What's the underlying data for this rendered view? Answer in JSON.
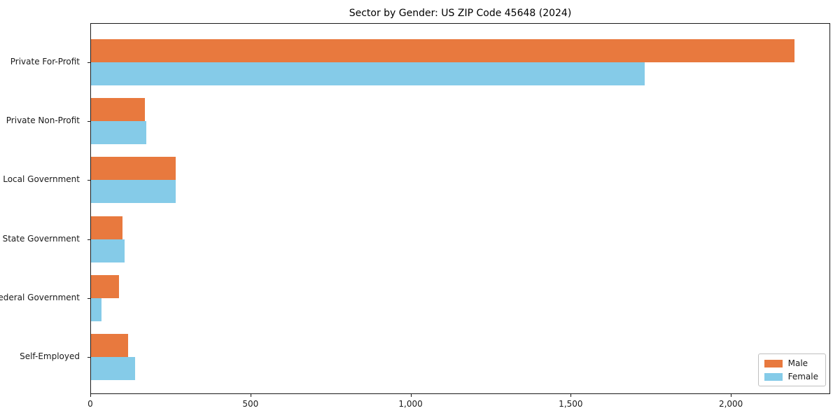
{
  "chart_data": {
    "type": "bar",
    "orientation": "horizontal",
    "title": "Sector by Gender: US ZIP Code 45648 (2024)",
    "categories": [
      "Private For-Profit",
      "Private Non-Profit",
      "Local Government",
      "State Government",
      "Federal Government",
      "Self-Employed"
    ],
    "series": [
      {
        "name": "Male",
        "color": "#e8793e",
        "values": [
          2200,
          168,
          265,
          98,
          87,
          115
        ]
      },
      {
        "name": "Female",
        "color": "#85cbe8",
        "values": [
          1733,
          173,
          265,
          106,
          33,
          139
        ]
      }
    ],
    "xlabel": "",
    "ylabel": "",
    "xlim": [
      0,
      2310
    ],
    "xticks": [
      0,
      500,
      1000,
      1500,
      2000
    ],
    "xtick_labels": [
      "0",
      "500",
      "1,000",
      "1,500",
      "2,000"
    ],
    "grid": false,
    "legend_position": "lower-right",
    "background_color": "#ffffff",
    "spine_color": "#1a1a1a"
  }
}
